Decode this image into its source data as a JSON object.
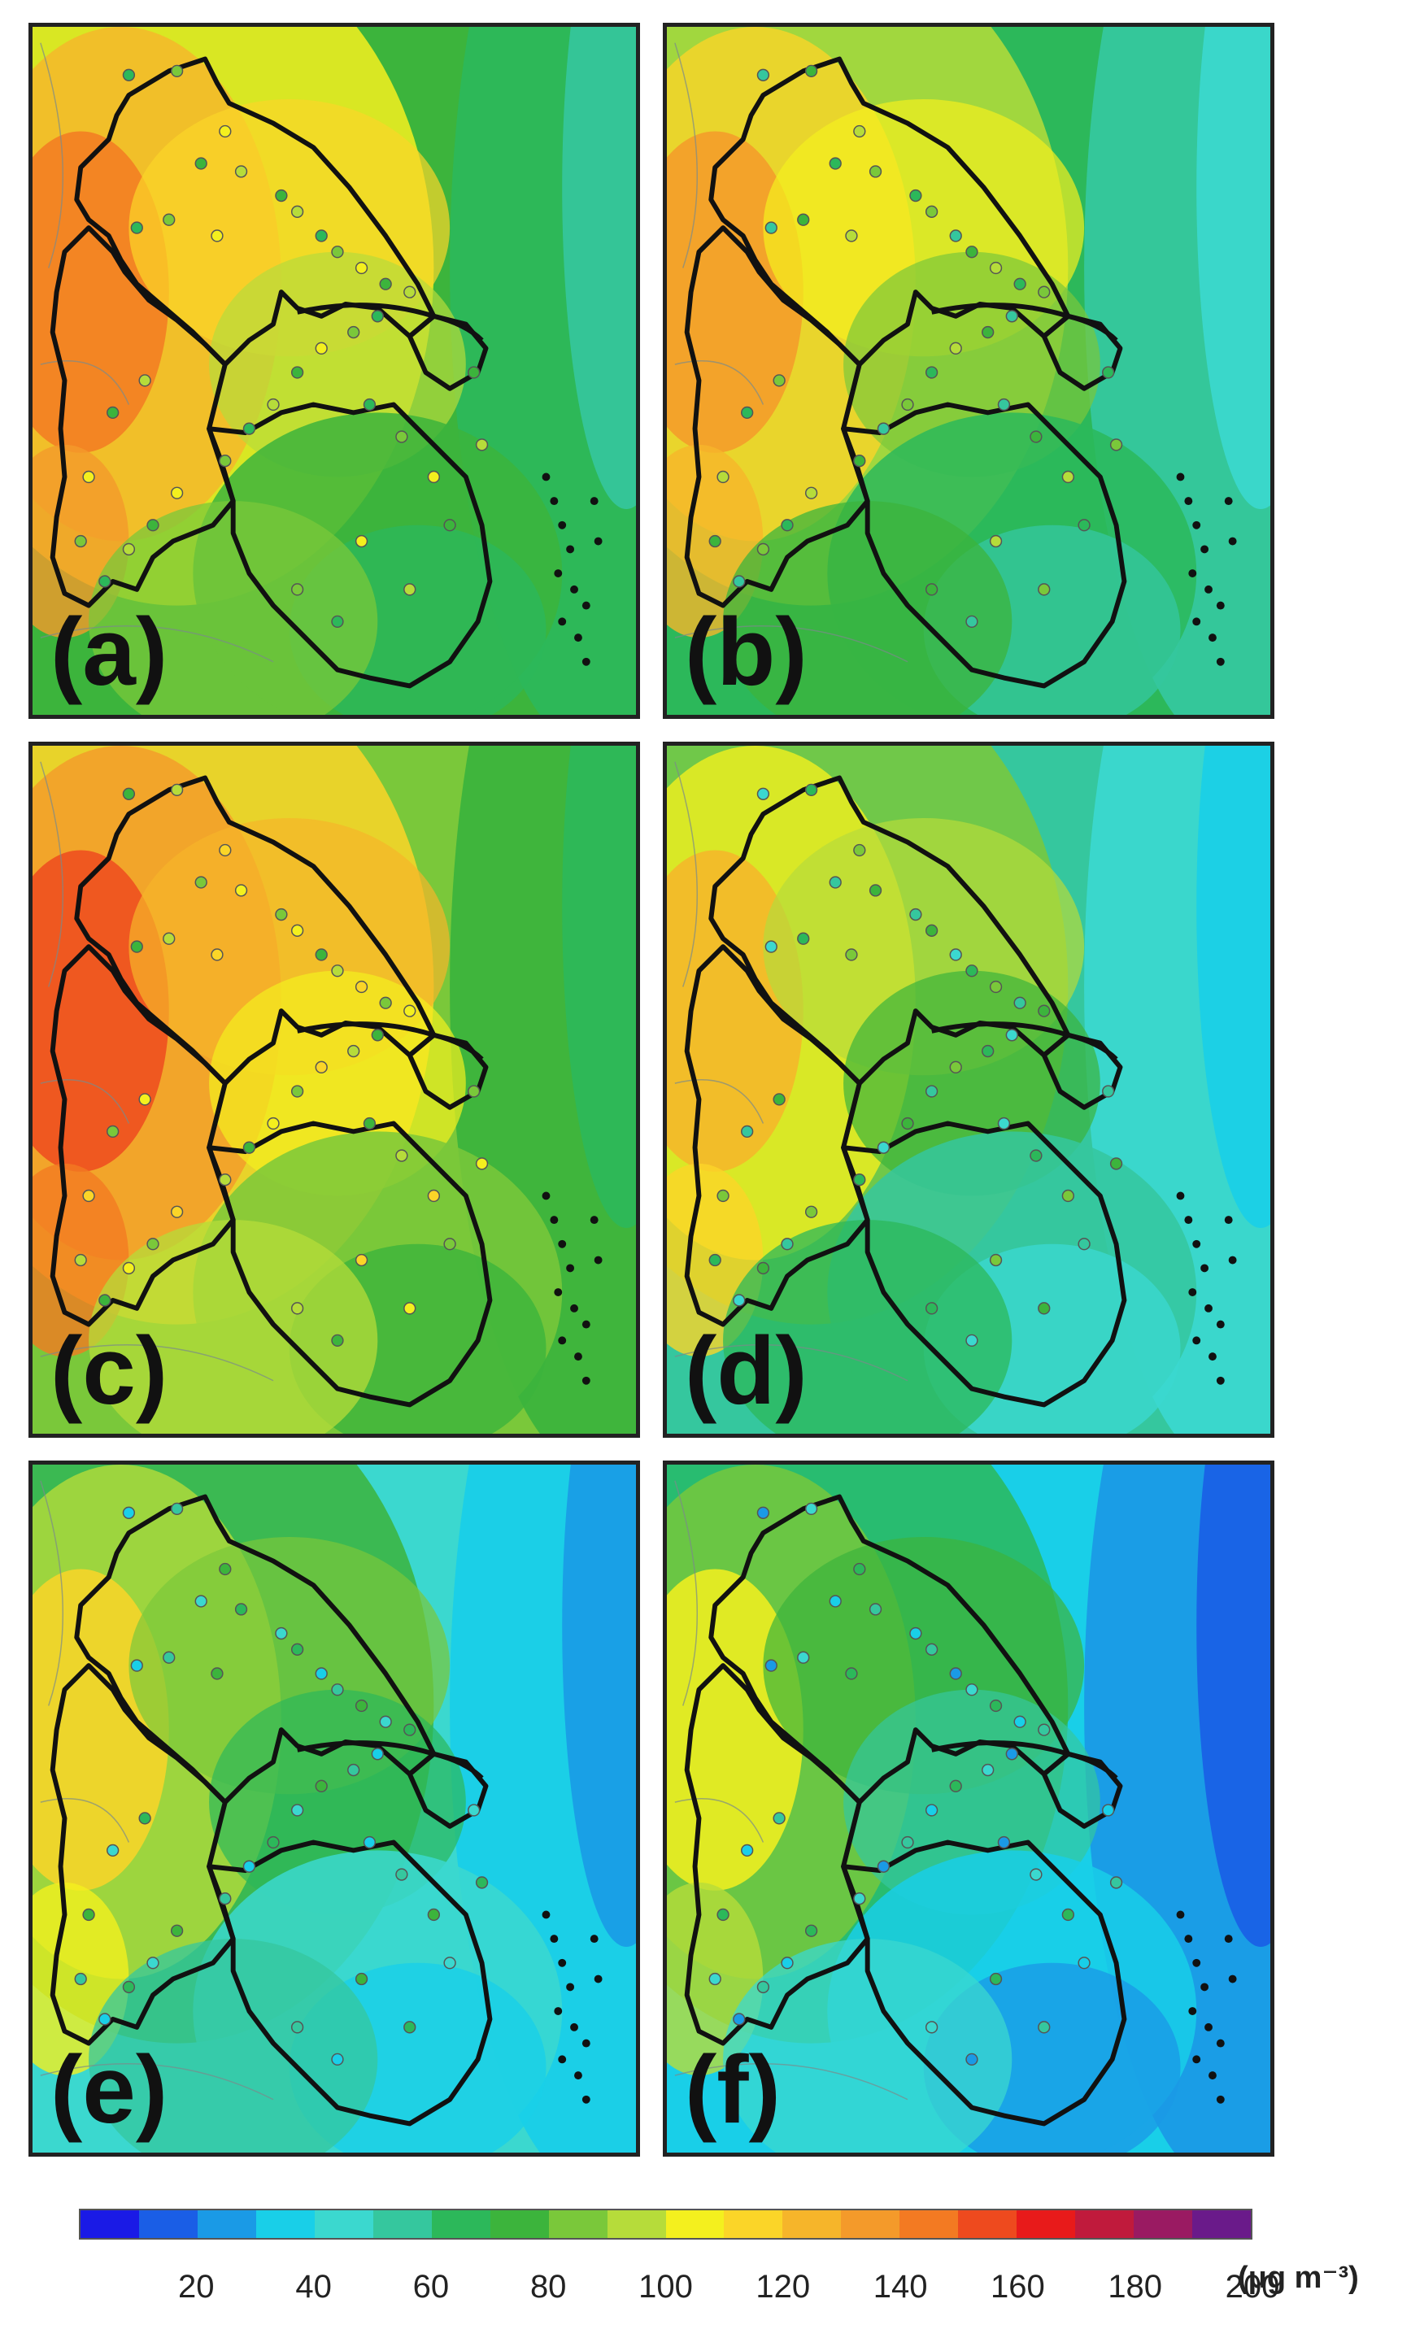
{
  "figure": {
    "panels": [
      {
        "label": "(a)",
        "tone": 4
      },
      {
        "label": "(b)",
        "tone": 3
      },
      {
        "label": "(c)",
        "tone": 5
      },
      {
        "label": "(d)",
        "tone": 2
      },
      {
        "label": "(e)",
        "tone": 1
      },
      {
        "label": "(f)",
        "tone": 0
      }
    ],
    "colorbar": {
      "colors": [
        "#1a1ae6",
        "#1a5ee6",
        "#1a9ae6",
        "#19cfe8",
        "#3bd8cf",
        "#35c79e",
        "#2cb85a",
        "#3cb43c",
        "#7ac83a",
        "#b6dc3a",
        "#f4f01e",
        "#fbd528",
        "#f6b52a",
        "#f49a2a",
        "#f37a22",
        "#ee4a1e",
        "#e81a1a",
        "#c01a3c",
        "#9a1a62",
        "#6a1a8a"
      ],
      "tick_labels": [
        "20",
        "40",
        "60",
        "80",
        "100",
        "120",
        "140",
        "160",
        "180",
        "200"
      ],
      "unit_label": "(μg m⁻³)"
    }
  }
}
